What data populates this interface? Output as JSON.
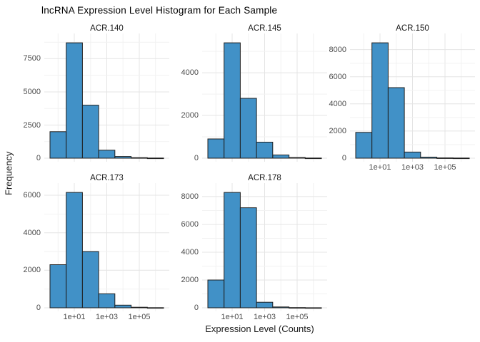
{
  "page": {
    "title": "lncRNA Expression Level Histogram for Each Sample"
  },
  "axes": {
    "x_title": "Expression Level (Counts)",
    "y_title": "Frequency"
  },
  "style": {
    "bar_fill": "#4191C7",
    "bar_stroke": "#1f1f1f",
    "grid_major": "#e4e4e4",
    "grid_minor": "#f2f2f2",
    "tick_label_color": "#4d4d4d",
    "strip_text_color": "#1a1a1a",
    "background": "#ffffff"
  },
  "chart_data": {
    "type": "bar",
    "subtype": "faceted-histograms",
    "title": "lncRNA Expression Level Histogram for Each Sample",
    "xlabel": "Expression Level (Counts)",
    "ylabel": "Frequency",
    "x_scale": "log10",
    "grid": "on",
    "legend": "none",
    "bin_width_decades": 1,
    "bin_centers_exp": [
      0,
      1,
      2,
      3,
      4,
      5,
      6
    ],
    "xlim_exp": [
      -0.85,
      6.85
    ],
    "x_ticks": [
      {
        "label": "1e+01",
        "exp": 1
      },
      {
        "label": "1e+03",
        "exp": 3
      },
      {
        "label": "1e+05",
        "exp": 5
      }
    ],
    "panels": [
      {
        "name": "ACR.140",
        "values": [
          2000,
          8700,
          4000,
          600,
          130,
          35,
          10
        ],
        "yticks": [
          0,
          2500,
          5000,
          7500
        ],
        "show_xlabels": false
      },
      {
        "name": "ACR.145",
        "values": [
          900,
          5400,
          2800,
          750,
          150,
          30,
          8
        ],
        "yticks": [
          0,
          2000,
          4000
        ],
        "show_xlabels": false
      },
      {
        "name": "ACR.150",
        "values": [
          1900,
          8500,
          5200,
          450,
          80,
          20,
          8
        ],
        "yticks": [
          0,
          2000,
          4000,
          6000,
          8000
        ],
        "show_xlabels": true
      },
      {
        "name": "ACR.173",
        "values": [
          2300,
          6150,
          3000,
          750,
          140,
          30,
          8
        ],
        "yticks": [
          0,
          2000,
          4000,
          6000
        ],
        "show_xlabels": true
      },
      {
        "name": "ACR.178",
        "values": [
          2000,
          8300,
          7200,
          400,
          60,
          15,
          5
        ],
        "yticks": [
          0,
          2000,
          4000,
          6000,
          8000
        ],
        "show_xlabels": true
      }
    ]
  }
}
